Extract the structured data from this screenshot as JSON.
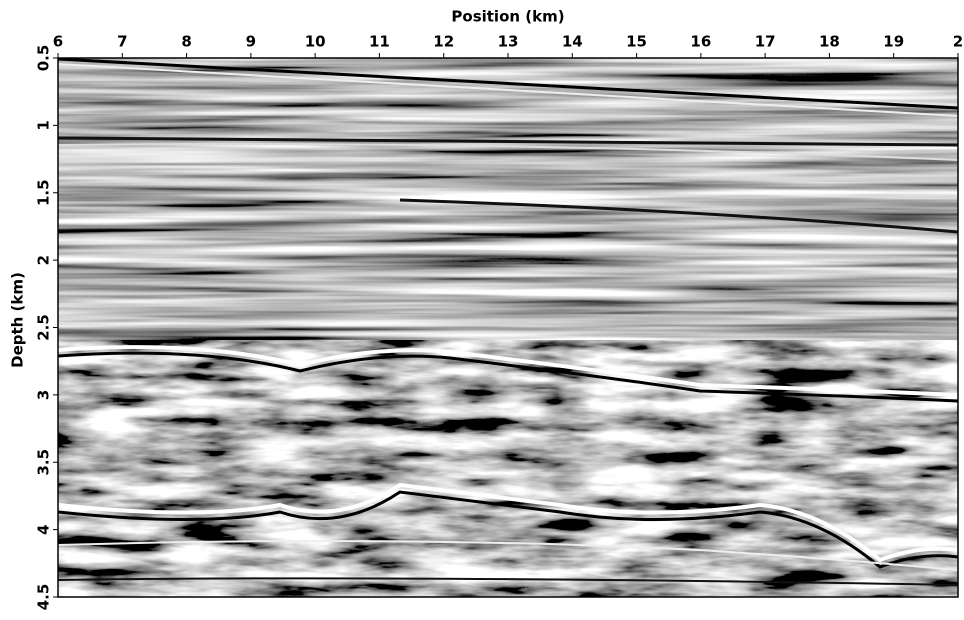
{
  "chart_data": {
    "type": "image",
    "xlabel": "Position (km)",
    "ylabel": "Depth (km)",
    "xlim": [
      6,
      20
    ],
    "ylim": [
      4.5,
      0.5
    ],
    "xticks": [
      6,
      7,
      8,
      9,
      10,
      11,
      12,
      13,
      14,
      15,
      16,
      17,
      18,
      19,
      {
        "value": 20,
        "label": "2"
      }
    ],
    "yticks": [
      0.5,
      1,
      1.5,
      2,
      2.5,
      3,
      3.5,
      4,
      4.5
    ],
    "xaxis_position": "top",
    "colormap": "gray"
  }
}
